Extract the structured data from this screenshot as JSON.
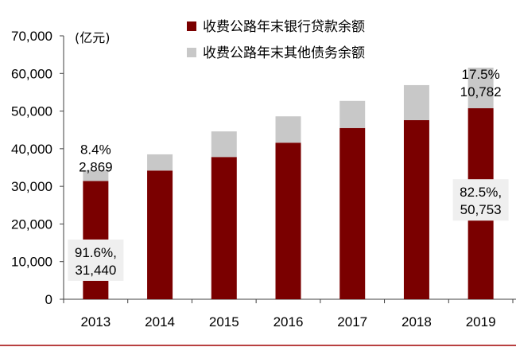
{
  "chart_data": {
    "type": "bar",
    "stacked": true,
    "unit_label": "(亿元)",
    "categories": [
      "2013",
      "2014",
      "2015",
      "2016",
      "2017",
      "2018",
      "2019"
    ],
    "series": [
      {
        "name": "收费公路年末银行贷款余额",
        "color": "#7a0000",
        "values": [
          31440,
          34200,
          37800,
          41600,
          45500,
          47600,
          50753
        ]
      },
      {
        "name": "收费公路年末其他债务余额",
        "color": "#c8c8c8",
        "values": [
          2869,
          4300,
          6800,
          7000,
          7200,
          9300,
          10782
        ]
      }
    ],
    "y_ticks": [
      "0",
      "10,000",
      "20,000",
      "30,000",
      "40,000",
      "50,000",
      "60,000",
      "70,000"
    ],
    "ylim": [
      0,
      70000
    ],
    "legend_position": "top",
    "grid": false,
    "annotations": [
      {
        "id": "ann-2013-other",
        "line1": "8.4%",
        "line2": "2,869",
        "year": "2013",
        "series": "other",
        "boxed": false
      },
      {
        "id": "ann-2013-loan",
        "line1": "91.6%,",
        "line2": "31,440",
        "year": "2013",
        "series": "bank_loan",
        "boxed": true
      },
      {
        "id": "ann-2019-other",
        "line1": "17.5%",
        "line2": "10,782",
        "year": "2019",
        "series": "other",
        "boxed": false
      },
      {
        "id": "ann-2019-loan",
        "line1": "82.5%,",
        "line2": "50,753",
        "year": "2019",
        "series": "bank_loan",
        "boxed": true
      }
    ]
  },
  "colors": {
    "frame_rule": "#a00000",
    "annotation_box": "#efefef",
    "axis": "#404040"
  }
}
